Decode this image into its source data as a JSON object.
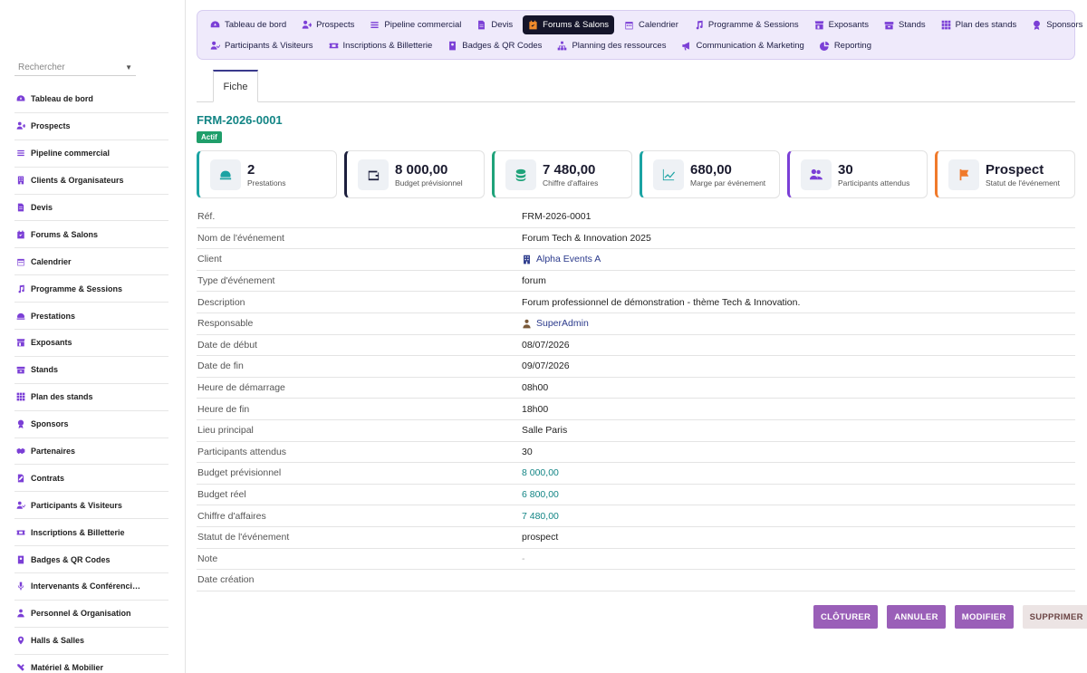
{
  "sidebar": {
    "search_placeholder": "Rechercher",
    "items": [
      {
        "label": "Tableau de bord",
        "icon": "gauge-icon"
      },
      {
        "label": "Prospects",
        "icon": "user-plus-icon"
      },
      {
        "label": "Pipeline commercial",
        "icon": "bars-icon"
      },
      {
        "label": "Clients & Organisateurs",
        "icon": "building-icon"
      },
      {
        "label": "Devis",
        "icon": "file-icon"
      },
      {
        "label": "Forums & Salons",
        "icon": "calendar-check-icon"
      },
      {
        "label": "Calendrier",
        "icon": "calendar-icon"
      },
      {
        "label": "Programme & Sessions",
        "icon": "music-icon"
      },
      {
        "label": "Prestations",
        "icon": "bell-service-icon"
      },
      {
        "label": "Exposants",
        "icon": "store-icon"
      },
      {
        "label": "Stands",
        "icon": "box-icon"
      },
      {
        "label": "Plan des stands",
        "icon": "grid-icon"
      },
      {
        "label": "Sponsors",
        "icon": "award-icon"
      },
      {
        "label": "Partenaires",
        "icon": "handshake-icon"
      },
      {
        "label": "Contrats",
        "icon": "file-signature-icon"
      },
      {
        "label": "Participants & Visiteurs",
        "icon": "user-check-icon"
      },
      {
        "label": "Inscriptions & Billetterie",
        "icon": "ticket-icon"
      },
      {
        "label": "Badges & QR Codes",
        "icon": "id-badge-icon"
      },
      {
        "label": "Intervenants & Conférenci…",
        "icon": "microphone-icon"
      },
      {
        "label": "Personnel & Organisation",
        "icon": "user-tie-icon"
      },
      {
        "label": "Halls & Salles",
        "icon": "map-marker-icon"
      },
      {
        "label": "Matériel & Mobilier",
        "icon": "tools-icon"
      }
    ]
  },
  "topnav": {
    "row1": [
      {
        "label": "Tableau de bord",
        "icon": "gauge-icon",
        "active": false
      },
      {
        "label": "Prospects",
        "icon": "user-plus-icon",
        "active": false
      },
      {
        "label": "Pipeline commercial",
        "icon": "bars-icon",
        "active": false
      },
      {
        "label": "Devis",
        "icon": "file-icon",
        "active": false
      },
      {
        "label": "Forums & Salons",
        "icon": "calendar-check-icon",
        "active": true
      },
      {
        "label": "Calendrier",
        "icon": "calendar-icon",
        "active": false
      },
      {
        "label": "Programme & Sessions",
        "icon": "music-icon",
        "active": false
      },
      {
        "label": "Exposants",
        "icon": "store-icon",
        "active": false
      },
      {
        "label": "Stands",
        "icon": "box-icon",
        "active": false
      },
      {
        "label": "Plan des stands",
        "icon": "grid-icon",
        "active": false
      },
      {
        "label": "Sponsors",
        "icon": "award-icon",
        "active": false
      }
    ],
    "row2": [
      {
        "label": "Participants & Visiteurs",
        "icon": "user-check-icon",
        "active": false
      },
      {
        "label": "Inscriptions & Billetterie",
        "icon": "ticket-icon",
        "active": false
      },
      {
        "label": "Badges & QR Codes",
        "icon": "id-badge-icon",
        "active": false
      },
      {
        "label": "Planning des ressources",
        "icon": "sitemap-icon",
        "active": false
      },
      {
        "label": "Communication & Marketing",
        "icon": "bullhorn-icon",
        "active": false
      },
      {
        "label": "Reporting",
        "icon": "pie-chart-icon",
        "active": false
      }
    ]
  },
  "tabs": {
    "fiche": "Fiche"
  },
  "record": {
    "ref": "FRM-2026-0001",
    "status_badge": "Actif"
  },
  "kpis": [
    {
      "value": "2",
      "label": "Prestations",
      "icon": "bell-service-icon",
      "border": "#1aa3a3",
      "color": "#1aa3a3"
    },
    {
      "value": "8 000,00",
      "label": "Budget prévisionnel",
      "icon": "wallet-icon",
      "border": "#1c1f3d",
      "color": "#1c1f3d"
    },
    {
      "value": "7 480,00",
      "label": "Chiffre d'affaires",
      "icon": "coins-icon",
      "border": "#1fa37a",
      "color": "#1fa37a"
    },
    {
      "value": "680,00",
      "label": "Marge par événement",
      "icon": "chart-line-icon",
      "border": "#1aa3a3",
      "color": "#1aa3a3"
    },
    {
      "value": "30",
      "label": "Participants attendus",
      "icon": "users-icon",
      "border": "#7b3fd6",
      "color": "#7b3fd6"
    },
    {
      "value": "Prospect",
      "label": "Statut de l'événement",
      "icon": "flag-icon",
      "border": "#f07a2b",
      "color": "#f07a2b"
    }
  ],
  "fields": [
    {
      "key": "Réf.",
      "value": "FRM-2026-0001",
      "style": "plain"
    },
    {
      "key": "Nom de l'événement",
      "value": "Forum Tech & Innovation 2025",
      "style": "plain"
    },
    {
      "key": "Client",
      "value": "Alpha Events A",
      "style": "link",
      "icon": "building-icon"
    },
    {
      "key": "Type d'événement",
      "value": "forum",
      "style": "plain"
    },
    {
      "key": "Description",
      "value": "Forum professionnel de démonstration - thème Tech & Innovation.",
      "style": "plain"
    },
    {
      "key": "Responsable",
      "value": "SuperAdmin",
      "style": "link",
      "icon": "user-icon"
    },
    {
      "key": "Date de début",
      "value": "08/07/2026",
      "style": "plain"
    },
    {
      "key": "Date de fin",
      "value": "09/07/2026",
      "style": "plain"
    },
    {
      "key": "Heure de démarrage",
      "value": "08h00",
      "style": "plain"
    },
    {
      "key": "Heure de fin",
      "value": "18h00",
      "style": "plain"
    },
    {
      "key": "Lieu principal",
      "value": "Salle Paris",
      "style": "plain"
    },
    {
      "key": "Participants attendus",
      "value": "30",
      "style": "plain"
    },
    {
      "key": "Budget prévisionnel",
      "value": "8 000,00",
      "style": "num"
    },
    {
      "key": "Budget réel",
      "value": "6 800,00",
      "style": "num"
    },
    {
      "key": "Chiffre d'affaires",
      "value": "7 480,00",
      "style": "num"
    },
    {
      "key": "Statut de l'événement",
      "value": "prospect",
      "style": "plain"
    },
    {
      "key": "Note",
      "value": "-",
      "style": "muted"
    },
    {
      "key": "Date création",
      "value": "",
      "style": "plain"
    }
  ],
  "actions": {
    "cloturer": "CLÔTURER",
    "annuler": "ANNULER",
    "modifier": "MODIFIER",
    "supprimer": "SUPPRIMER"
  }
}
